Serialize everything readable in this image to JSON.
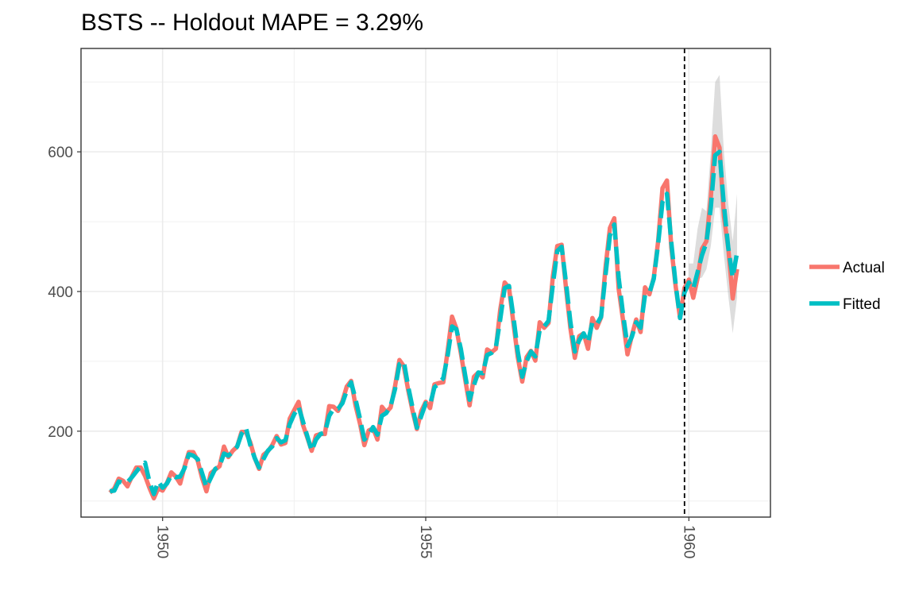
{
  "chart_data": {
    "type": "line",
    "title": "BSTS -- Holdout MAPE = 3.29%",
    "xlabel": "",
    "ylabel": "",
    "xlim": [
      1948.45,
      1961.55
    ],
    "ylim": [
      77,
      748
    ],
    "x_ticks": [
      1950,
      1955,
      1960
    ],
    "x_tick_labels": [
      "1950",
      "1955",
      "1960"
    ],
    "y_ticks": [
      200,
      400,
      600
    ],
    "y_tick_labels": [
      "200",
      "400",
      "600"
    ],
    "grid": true,
    "legend_position": "right",
    "holdout_start": 1959.917,
    "start": 1949.0,
    "step": 0.08333,
    "series": [
      {
        "name": "Actual",
        "color": "#F8766D",
        "line_style": "solid",
        "values": [
          112,
          118,
          132,
          129,
          121,
          135,
          148,
          148,
          136,
          119,
          104,
          118,
          115,
          126,
          141,
          135,
          125,
          149,
          170,
          170,
          158,
          133,
          114,
          140,
          145,
          150,
          178,
          163,
          172,
          178,
          199,
          199,
          184,
          162,
          146,
          166,
          171,
          180,
          193,
          181,
          183,
          218,
          230,
          242,
          209,
          191,
          172,
          194,
          196,
          196,
          236,
          235,
          229,
          243,
          264,
          272,
          237,
          211,
          180,
          201,
          204,
          188,
          235,
          227,
          234,
          264,
          302,
          293,
          259,
          229,
          203,
          229,
          242,
          233,
          267,
          269,
          270,
          315,
          364,
          347,
          312,
          274,
          237,
          278,
          284,
          277,
          317,
          313,
          318,
          374,
          413,
          405,
          355,
          306,
          271,
          306,
          315,
          301,
          356,
          348,
          355,
          422,
          465,
          467,
          404,
          347,
          305,
          336,
          340,
          318,
          362,
          348,
          363,
          435,
          491,
          505,
          404,
          359,
          310,
          337,
          360,
          342,
          406,
          396,
          420,
          472,
          548,
          559,
          463,
          407,
          362,
          405,
          417,
          391,
          419,
          461,
          472,
          535,
          622,
          606,
          508,
          461,
          390,
          432
        ]
      },
      {
        "name": "Fitted",
        "color": "#00BFC4",
        "line_style": "dashed",
        "values": [
          114,
          115,
          128,
          126,
          127,
          134,
          142,
          150,
          155,
          128,
          110,
          128,
          119,
          125,
          137,
          134,
          135,
          147,
          167,
          165,
          160,
          140,
          120,
          133,
          146,
          150,
          168,
          165,
          170,
          178,
          196,
          205,
          180,
          162,
          148,
          160,
          172,
          178,
          190,
          184,
          187,
          210,
          224,
          235,
          214,
          193,
          172,
          188,
          196,
          198,
          222,
          232,
          232,
          240,
          258,
          270,
          246,
          218,
          188,
          195,
          206,
          195,
          222,
          226,
          236,
          260,
          296,
          300,
          264,
          234,
          205,
          222,
          240,
          238,
          263,
          268,
          276,
          308,
          350,
          346,
          318,
          280,
          245,
          266,
          284,
          283,
          309,
          312,
          320,
          360,
          405,
          408,
          364,
          314,
          278,
          300,
          314,
          307,
          345,
          350,
          358,
          410,
          458,
          464,
          412,
          356,
          314,
          330,
          340,
          327,
          356,
          353,
          364,
          424,
          480,
          496,
          420,
          368,
          322,
          335,
          356,
          348,
          395,
          398,
          418,
          468,
          528,
          540,
          470,
          410,
          362,
          398,
          413,
          404,
          428,
          452,
          470,
          520,
          595,
          600,
          524,
          462,
          420,
          456
        ]
      }
    ],
    "forecast_interval": {
      "lower": [
        403,
        396,
        418,
        420,
        432,
        465,
        520,
        520,
        452,
        393,
        340,
        392
      ],
      "upper": [
        440,
        440,
        490,
        520,
        515,
        600,
        700,
        710,
        600,
        525,
        472,
        540
      ]
    },
    "legend": {
      "items": [
        {
          "name": "Actual",
          "color": "#F8766D"
        },
        {
          "name": "Fitted",
          "color": "#00BFC4"
        }
      ]
    }
  }
}
